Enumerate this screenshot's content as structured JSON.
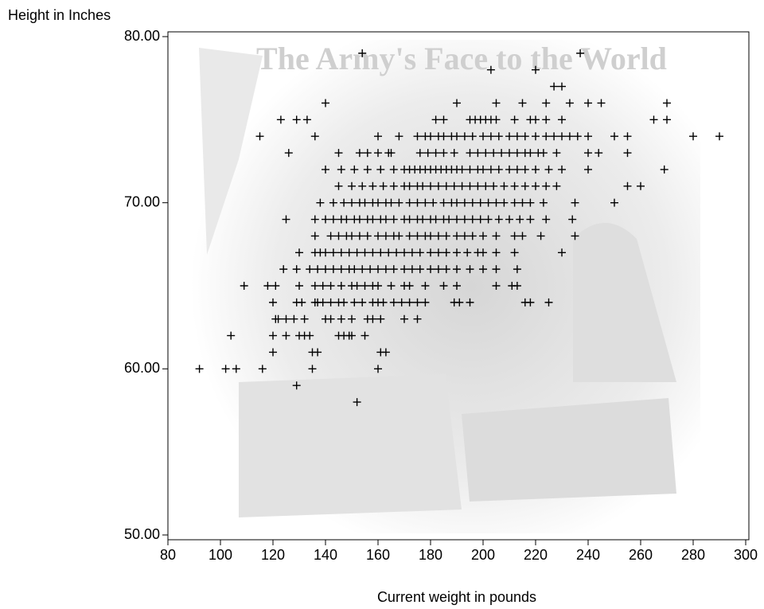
{
  "chart_data": {
    "type": "scatter",
    "xlabel": "Current weight in pounds",
    "ylabel": "Height in Inches",
    "background_text": "The Army's Face to the World",
    "marker": "plus",
    "color": "#000000",
    "xlim": [
      80,
      300
    ],
    "xticks": [
      80,
      100,
      120,
      140,
      160,
      180,
      200,
      220,
      240,
      260,
      280,
      300
    ],
    "ylim": [
      50,
      80
    ],
    "yticks": [
      {
        "value": 50,
        "label": "50.00"
      },
      {
        "value": 60,
        "label": "60.00"
      },
      {
        "value": 70,
        "label": "70.00"
      },
      {
        "value": 80,
        "label": "80.00"
      }
    ],
    "x": [
      154,
      237,
      203,
      220,
      227,
      230,
      140,
      190,
      205,
      215,
      224,
      233,
      240,
      245,
      270,
      123,
      129,
      133,
      182,
      185,
      195,
      197,
      199,
      201,
      203,
      205,
      212,
      218,
      220,
      224,
      230,
      265,
      270,
      115,
      136,
      160,
      168,
      175,
      178,
      180,
      183,
      185,
      188,
      190,
      193,
      196,
      200,
      203,
      206,
      210,
      213,
      216,
      220,
      224,
      227,
      230,
      233,
      236,
      240,
      250,
      255,
      280,
      290,
      126,
      145,
      153,
      156,
      160,
      164,
      165,
      176,
      179,
      182,
      185,
      189,
      195,
      198,
      201,
      204,
      207,
      210,
      213,
      216,
      218,
      221,
      223,
      228,
      240,
      244,
      255,
      140,
      146,
      151,
      156,
      161,
      166,
      170,
      172,
      174,
      176,
      178,
      180,
      182,
      184,
      186,
      188,
      190,
      192,
      195,
      198,
      200,
      203,
      206,
      210,
      213,
      216,
      220,
      225,
      230,
      240,
      269,
      145,
      150,
      154,
      158,
      162,
      166,
      170,
      172,
      175,
      177,
      180,
      183,
      186,
      189,
      192,
      195,
      198,
      201,
      204,
      208,
      212,
      216,
      220,
      224,
      228,
      255,
      260,
      138,
      143,
      147,
      150,
      153,
      155,
      158,
      160,
      163,
      165,
      168,
      172,
      175,
      178,
      181,
      185,
      188,
      190,
      193,
      196,
      199,
      202,
      205,
      208,
      212,
      215,
      218,
      223,
      235,
      250,
      125,
      136,
      140,
      143,
      146,
      148,
      151,
      153,
      156,
      158,
      161,
      163,
      166,
      170,
      172,
      175,
      177,
      180,
      182,
      185,
      187,
      190,
      193,
      196,
      199,
      202,
      206,
      210,
      214,
      218,
      224,
      234,
      136,
      142,
      145,
      148,
      150,
      153,
      156,
      160,
      163,
      166,
      168,
      172,
      175,
      178,
      180,
      183,
      186,
      190,
      193,
      196,
      200,
      205,
      212,
      215,
      222,
      235,
      130,
      136,
      138,
      140,
      143,
      146,
      149,
      152,
      155,
      158,
      161,
      164,
      167,
      170,
      173,
      176,
      180,
      183,
      186,
      190,
      194,
      198,
      200,
      205,
      212,
      230,
      124,
      129,
      134,
      137,
      140,
      143,
      146,
      149,
      151,
      154,
      157,
      160,
      163,
      166,
      170,
      173,
      176,
      180,
      183,
      186,
      190,
      195,
      200,
      205,
      213,
      109,
      118,
      121,
      130,
      136,
      139,
      142,
      146,
      150,
      152,
      155,
      158,
      160,
      165,
      170,
      172,
      178,
      185,
      190,
      205,
      211,
      213,
      120,
      129,
      131,
      136,
      137,
      139,
      142,
      145,
      147,
      151,
      154,
      158,
      160,
      162,
      166,
      169,
      172,
      175,
      178,
      189,
      191,
      195,
      216,
      218,
      225,
      121,
      122,
      125,
      128,
      132,
      140,
      142,
      146,
      150,
      156,
      158,
      161,
      170,
      175,
      104,
      120,
      125,
      130,
      132,
      134,
      145,
      147,
      149,
      150,
      155,
      120,
      135,
      137,
      161,
      163,
      92,
      102,
      106,
      116,
      135,
      160,
      129,
      152
    ],
    "values": [
      79,
      79,
      78,
      78,
      77,
      77,
      76,
      76,
      76,
      76,
      76,
      76,
      76,
      76,
      76,
      75,
      75,
      75,
      75,
      75,
      75,
      75,
      75,
      75,
      75,
      75,
      75,
      75,
      75,
      75,
      75,
      75,
      75,
      74,
      74,
      74,
      74,
      74,
      74,
      74,
      74,
      74,
      74,
      74,
      74,
      74,
      74,
      74,
      74,
      74,
      74,
      74,
      74,
      74,
      74,
      74,
      74,
      74,
      74,
      74,
      74,
      74,
      74,
      73,
      73,
      73,
      73,
      73,
      73,
      73,
      73,
      73,
      73,
      73,
      73,
      73,
      73,
      73,
      73,
      73,
      73,
      73,
      73,
      73,
      73,
      73,
      73,
      73,
      73,
      73,
      72,
      72,
      72,
      72,
      72,
      72,
      72,
      72,
      72,
      72,
      72,
      72,
      72,
      72,
      72,
      72,
      72,
      72,
      72,
      72,
      72,
      72,
      72,
      72,
      72,
      72,
      72,
      72,
      72,
      72,
      72,
      71,
      71,
      71,
      71,
      71,
      71,
      71,
      71,
      71,
      71,
      71,
      71,
      71,
      71,
      71,
      71,
      71,
      71,
      71,
      71,
      71,
      71,
      71,
      71,
      71,
      71,
      71,
      70,
      70,
      70,
      70,
      70,
      70,
      70,
      70,
      70,
      70,
      70,
      70,
      70,
      70,
      70,
      70,
      70,
      70,
      70,
      70,
      70,
      70,
      70,
      70,
      70,
      70,
      70,
      70,
      70,
      70,
      69,
      69,
      69,
      69,
      69,
      69,
      69,
      69,
      69,
      69,
      69,
      69,
      69,
      69,
      69,
      69,
      69,
      69,
      69,
      69,
      69,
      69,
      69,
      69,
      69,
      69,
      69,
      69,
      69,
      69,
      69,
      69,
      68,
      68,
      68,
      68,
      68,
      68,
      68,
      68,
      68,
      68,
      68,
      68,
      68,
      68,
      68,
      68,
      68,
      68,
      68,
      68,
      68,
      68,
      68,
      68,
      68,
      68,
      67,
      67,
      67,
      67,
      67,
      67,
      67,
      67,
      67,
      67,
      67,
      67,
      67,
      67,
      67,
      67,
      67,
      67,
      67,
      67,
      67,
      67,
      67,
      67,
      67,
      67,
      66,
      66,
      66,
      66,
      66,
      66,
      66,
      66,
      66,
      66,
      66,
      66,
      66,
      66,
      66,
      66,
      66,
      66,
      66,
      66,
      66,
      66,
      66,
      66,
      66,
      65,
      65,
      65,
      65,
      65,
      65,
      65,
      65,
      65,
      65,
      65,
      65,
      65,
      65,
      65,
      65,
      65,
      65,
      65,
      65,
      65,
      65,
      64,
      64,
      64,
      64,
      64,
      64,
      64,
      64,
      64,
      64,
      64,
      64,
      64,
      64,
      64,
      64,
      64,
      64,
      64,
      64,
      64,
      64,
      64,
      64,
      64,
      63,
      63,
      63,
      63,
      63,
      63,
      63,
      63,
      63,
      63,
      63,
      63,
      63,
      63,
      62,
      62,
      62,
      62,
      62,
      62,
      62,
      62,
      62,
      62,
      62,
      61,
      61,
      61,
      61,
      61,
      60,
      60,
      60,
      60,
      60,
      60,
      59,
      58
    ]
  }
}
